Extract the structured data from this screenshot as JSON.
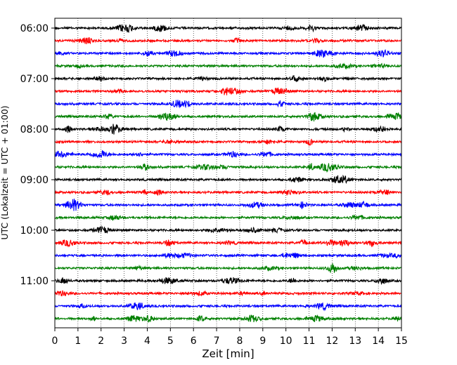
{
  "chart_data": {
    "type": "line",
    "title": "",
    "xlabel": "Zeit  [min]",
    "ylabel": "UTC (Lokalzeit = UTC + 01:00)",
    "xlim": [
      0,
      15
    ],
    "x_ticks": [
      "0",
      "1",
      "2",
      "3",
      "4",
      "5",
      "6",
      "7",
      "8",
      "9",
      "10",
      "11",
      "12",
      "13",
      "14",
      "15"
    ],
    "y_tick_labels": [
      "06:00",
      "07:00",
      "08:00",
      "09:00",
      "10:00",
      "11:00"
    ],
    "row_interval_minutes": 15,
    "start_time": "06:00",
    "trace_colors": [
      "#000000",
      "#ff0000",
      "#0000ff",
      "#008000"
    ],
    "vertical_grid": true,
    "grid_style": "dotted",
    "rows": [
      {
        "time": "06:00",
        "color": "#000000"
      },
      {
        "time": "06:15",
        "color": "#ff0000"
      },
      {
        "time": "06:30",
        "color": "#0000ff"
      },
      {
        "time": "06:45",
        "color": "#008000"
      },
      {
        "time": "07:00",
        "color": "#000000"
      },
      {
        "time": "07:15",
        "color": "#ff0000"
      },
      {
        "time": "07:30",
        "color": "#0000ff"
      },
      {
        "time": "07:45",
        "color": "#008000"
      },
      {
        "time": "08:00",
        "color": "#000000"
      },
      {
        "time": "08:15",
        "color": "#ff0000"
      },
      {
        "time": "08:30",
        "color": "#0000ff"
      },
      {
        "time": "08:45",
        "color": "#008000"
      },
      {
        "time": "09:00",
        "color": "#000000"
      },
      {
        "time": "09:15",
        "color": "#ff0000"
      },
      {
        "time": "09:30",
        "color": "#0000ff"
      },
      {
        "time": "09:45",
        "color": "#008000"
      },
      {
        "time": "10:00",
        "color": "#000000"
      },
      {
        "time": "10:15",
        "color": "#ff0000"
      },
      {
        "time": "10:30",
        "color": "#0000ff"
      },
      {
        "time": "10:45",
        "color": "#008000"
      },
      {
        "time": "11:00",
        "color": "#000000"
      },
      {
        "time": "11:15",
        "color": "#ff0000"
      },
      {
        "time": "11:30",
        "color": "#0000ff"
      },
      {
        "time": "11:45",
        "color": "#008000"
      }
    ]
  }
}
